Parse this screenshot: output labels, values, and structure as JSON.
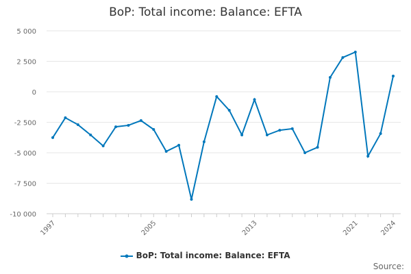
{
  "chart_data": {
    "type": "line",
    "title": "BoP: Total income: Balance: EFTA",
    "x": [
      1997,
      1998,
      1999,
      2000,
      2001,
      2002,
      2003,
      2004,
      2005,
      2006,
      2007,
      2008,
      2009,
      2010,
      2011,
      2012,
      2013,
      2014,
      2015,
      2016,
      2017,
      2018,
      2019,
      2020,
      2021,
      2022,
      2023,
      2024
    ],
    "series": [
      {
        "name": "BoP: Total income: Balance: EFTA",
        "values": [
          -3760,
          -2130,
          -2700,
          -3540,
          -4440,
          -2870,
          -2750,
          -2360,
          -3090,
          -4890,
          -4380,
          -8820,
          -4100,
          -390,
          -1520,
          -3540,
          -640,
          -3540,
          -3150,
          -3030,
          -5000,
          -4550,
          1180,
          2810,
          3260,
          -5280,
          -3430,
          1290
        ]
      }
    ],
    "xticks": [
      "1997",
      "2005",
      "2013",
      "2021",
      "2024"
    ],
    "yticks": [
      {
        "v": 5000,
        "label": "5 000"
      },
      {
        "v": 2500,
        "label": "2 500"
      },
      {
        "v": 0,
        "label": "0"
      },
      {
        "v": -2500,
        "label": "-2 500"
      },
      {
        "v": -5000,
        "label": "-5 000"
      },
      {
        "v": -7500,
        "label": "-7 500"
      },
      {
        "v": -10000,
        "label": "-10 000"
      }
    ],
    "ylim": [
      -10000,
      5000
    ],
    "grid": true,
    "legend": "bottom",
    "color": "#0077bb"
  },
  "source_label": "Source:"
}
